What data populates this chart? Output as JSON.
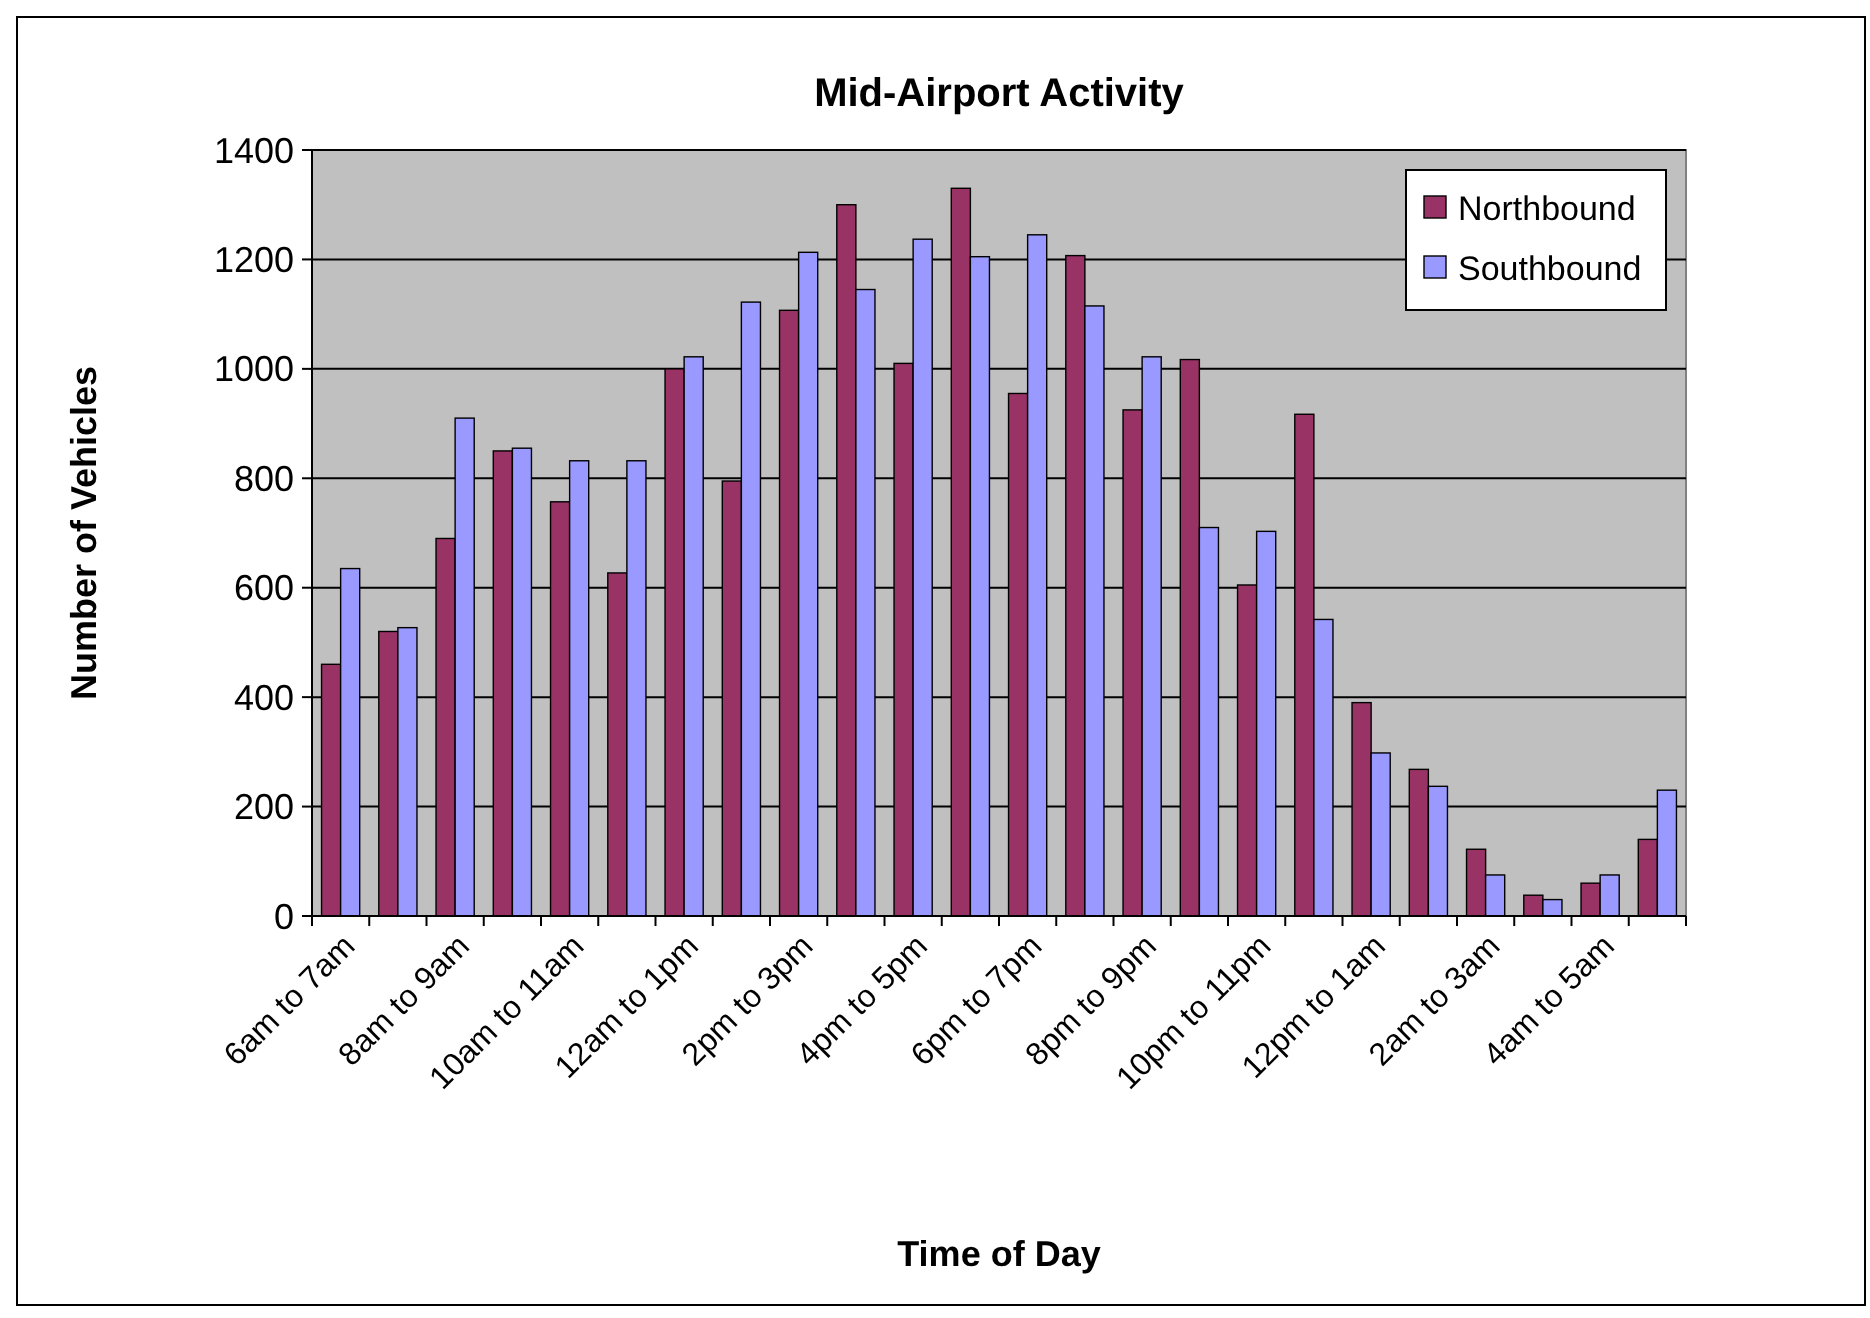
{
  "chart_data": {
    "type": "bar",
    "title": "Mid-Airport Activity",
    "xlabel": "Time of Day",
    "ylabel": "Number of Vehicles",
    "categories": [
      "6am to 7am",
      null,
      "8am to 9am",
      null,
      "10am to 11am",
      null,
      "12am to 1pm",
      null,
      "2pm to 3pm",
      null,
      "4pm to 5pm",
      null,
      "6pm to 7pm",
      null,
      "8pm to 9pm",
      null,
      "10pm to 11pm",
      null,
      "12pm to 1am",
      null,
      "2am to 3am",
      null,
      "4am to 5am",
      null
    ],
    "series": [
      {
        "name": "Northbound",
        "color": "#993366",
        "values": [
          460,
          520,
          690,
          850,
          757,
          627,
          1000,
          795,
          1107,
          1300,
          1010,
          1330,
          955,
          1207,
          925,
          1017,
          605,
          917,
          390,
          268,
          122,
          38,
          60,
          140
        ]
      },
      {
        "name": "Southbound",
        "color": "#9999ff",
        "values": [
          635,
          527,
          910,
          855,
          832,
          832,
          1022,
          1122,
          1213,
          1145,
          1237,
          1205,
          1245,
          1115,
          1022,
          710,
          703,
          542,
          298,
          237,
          75,
          30,
          75,
          230
        ]
      }
    ],
    "ylim": [
      0,
      1400
    ],
    "yticks": [
      0,
      200,
      400,
      600,
      800,
      1000,
      1200,
      1400
    ],
    "grid": "y",
    "legend": "top right"
  }
}
